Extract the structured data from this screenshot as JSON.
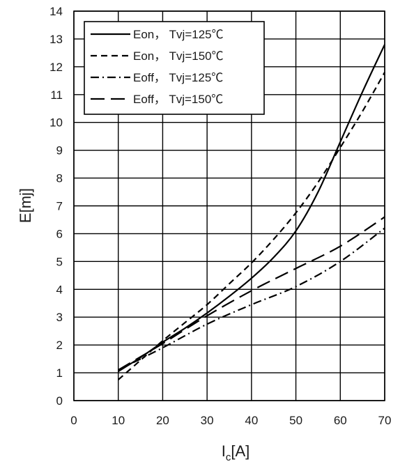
{
  "chart_data": {
    "type": "line",
    "xlabel": "I",
    "xlabel_sub": "c",
    "xlabel_unit": "[A]",
    "ylabel": "E[mj]",
    "xlim": [
      0,
      70
    ],
    "ylim": [
      0,
      14
    ],
    "xticks": [
      "0",
      "10",
      "20",
      "30",
      "40",
      "50",
      "60",
      "70"
    ],
    "yticks": [
      "0",
      "1",
      "2",
      "3",
      "4",
      "5",
      "6",
      "7",
      "8",
      "9",
      "10",
      "11",
      "12",
      "13",
      "14"
    ],
    "grid": true,
    "legend_position": "top-left",
    "series": [
      {
        "name": "Eon， Tvj=125℃",
        "style": "solid",
        "x": [
          10,
          15,
          20,
          25,
          30,
          35,
          40,
          45,
          50,
          55,
          60,
          65,
          70
        ],
        "y": [
          1.05,
          1.55,
          2.1,
          2.6,
          3.15,
          3.75,
          4.4,
          5.15,
          6.1,
          7.5,
          9.3,
          11.1,
          12.8
        ]
      },
      {
        "name": "Eon， Tvj=150℃",
        "style": "dash",
        "x": [
          10,
          15,
          20,
          25,
          30,
          35,
          40,
          45,
          50,
          55,
          60,
          65,
          70
        ],
        "y": [
          0.75,
          1.45,
          2.15,
          2.8,
          3.45,
          4.2,
          4.95,
          5.8,
          6.75,
          7.85,
          9.1,
          10.4,
          11.8
        ]
      },
      {
        "name": "Eoff， Tvj=125℃",
        "style": "dashdot",
        "x": [
          10,
          20,
          30,
          40,
          50,
          60,
          70
        ],
        "y": [
          1.1,
          1.9,
          2.75,
          3.45,
          4.1,
          5.0,
          6.2
        ]
      },
      {
        "name": "Eoff， Tvj=150℃",
        "style": "longdash",
        "x": [
          10,
          20,
          30,
          40,
          50,
          60,
          70
        ],
        "y": [
          1.1,
          2.05,
          3.05,
          3.95,
          4.75,
          5.55,
          6.6
        ]
      }
    ]
  }
}
